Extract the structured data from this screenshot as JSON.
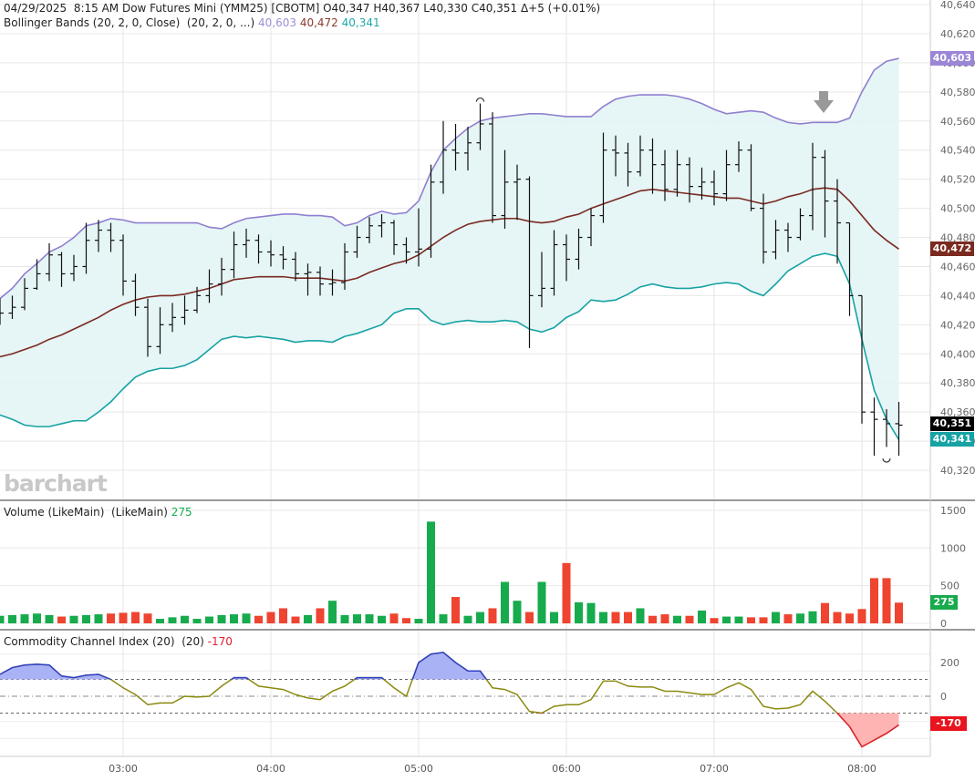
{
  "header": {
    "date": "04/29/2025",
    "time": "8:15 AM",
    "symbol": "Dow Futures Mini (YMM25) [CBOTM]",
    "open": "O40,347",
    "high": "H40,367",
    "low": "L40,330",
    "close": "C40,351",
    "change": "Δ+5 (+0.01%)"
  },
  "bollinger": {
    "label": "Bollinger Bands (20, 2, 0, Close)  (20, 2, 0, ...)",
    "upper": "40,603",
    "middle": "40,472",
    "lower": "40,341"
  },
  "volume_label": {
    "label": "Volume (LikeMain)  (LikeMain)",
    "value": "275"
  },
  "cci_label": {
    "label": "Commodity Channel Index (20)  (20)",
    "value": "-170"
  },
  "watermark": "barchart",
  "tags": {
    "upper": "40,603",
    "middle": "40,472",
    "last": "40,351",
    "lower": "40,341",
    "volume": "275",
    "cci": "-170"
  },
  "colors": {
    "upper": "#8f7fd0",
    "middle": "#7a2a22",
    "lower": "#17a2a4",
    "band_fill": "#e3f4f4",
    "up": "#17ab4d",
    "down": "#ee4430",
    "unchanged": "#2a50b8",
    "cci": "#8a8a10",
    "cci_high": "#3040c8",
    "cci_low": "#e02030"
  },
  "chart_data": [
    {
      "type": "ohlc",
      "title": "Dow Futures Mini (YMM25)",
      "ylim": [
        40310,
        40640
      ],
      "y_ticks": [
        "40,640",
        "40,620",
        "40,600",
        "40,580",
        "40,560",
        "40,540",
        "40,520",
        "40,500",
        "40,480",
        "40,460",
        "40,440",
        "40,420",
        "40,400",
        "40,380",
        "40,360",
        "40,340",
        "40,320"
      ],
      "x_ticks": [
        "03:00",
        "04:00",
        "05:00",
        "06:00",
        "07:00",
        "08:00"
      ],
      "x_start": "02:10",
      "interval_min": 5,
      "close": [
        40428,
        40432,
        40445,
        40455,
        40468,
        40455,
        40460,
        40478,
        40485,
        40478,
        40450,
        40432,
        40405,
        40420,
        40425,
        40430,
        40440,
        40448,
        40458,
        40475,
        40478,
        40470,
        40468,
        40465,
        40455,
        40456,
        40448,
        40449,
        40470,
        40480,
        40488,
        40490,
        40475,
        40470,
        40472,
        40518,
        40540,
        40538,
        40545,
        40558,
        40495,
        40518,
        40520,
        40440,
        40445,
        40475,
        40465,
        40480,
        40495,
        40540,
        40538,
        40525,
        40540,
        40530,
        40513,
        40530,
        40515,
        40518,
        40510,
        40530,
        40540,
        40500,
        40470,
        40485,
        40480,
        40495,
        40535,
        40505,
        40490,
        40440,
        40360,
        40355,
        40352,
        40351
      ],
      "high": [
        40438,
        40440,
        40452,
        40465,
        40476,
        40470,
        40468,
        40490,
        40492,
        40490,
        40482,
        40455,
        40438,
        40432,
        40435,
        40440,
        40446,
        40458,
        40466,
        40484,
        40486,
        40482,
        40478,
        40474,
        40470,
        40462,
        40460,
        40458,
        40476,
        40488,
        40494,
        40496,
        40492,
        40480,
        40500,
        40530,
        40560,
        40558,
        40556,
        40572,
        40566,
        40540,
        40530,
        40522,
        40470,
        40485,
        40482,
        40486,
        40500,
        40552,
        40550,
        40545,
        40550,
        40548,
        40540,
        40540,
        40535,
        40528,
        40526,
        40540,
        40546,
        40544,
        40510,
        40492,
        40490,
        40500,
        40545,
        40540,
        40520,
        40490,
        40440,
        40370,
        40362,
        40367
      ],
      "low": [
        40420,
        40424,
        40430,
        40444,
        40450,
        40446,
        40450,
        40455,
        40470,
        40470,
        40440,
        40426,
        40398,
        40400,
        40415,
        40420,
        40428,
        40435,
        40440,
        40452,
        40466,
        40462,
        40460,
        40458,
        40450,
        40440,
        40440,
        40440,
        40444,
        40466,
        40476,
        40480,
        40468,
        40462,
        40460,
        40466,
        40510,
        40526,
        40526,
        40540,
        40490,
        40486,
        40492,
        40404,
        40432,
        40440,
        40450,
        40458,
        40474,
        40490,
        40522,
        40515,
        40522,
        40510,
        40505,
        40508,
        40504,
        40506,
        40502,
        40505,
        40525,
        40498,
        40462,
        40465,
        40470,
        40478,
        40485,
        40480,
        40462,
        40426,
        40352,
        40330,
        40336,
        40330
      ]
    },
    {
      "type": "line",
      "name": "Bollinger Bands (20, 2, 0, Close)",
      "upper": [
        40438,
        40445,
        40455,
        40462,
        40470,
        40474,
        40480,
        40488,
        40490,
        40493,
        40492,
        40490,
        40490,
        40490,
        40490,
        40490,
        40490,
        40487,
        40486,
        40490,
        40493,
        40494,
        40495,
        40496,
        40496,
        40495,
        40495,
        40494,
        40488,
        40490,
        40495,
        40498,
        40496,
        40497,
        40505,
        40525,
        40540,
        40548,
        40555,
        40560,
        40562,
        40563,
        40564,
        40565,
        40565,
        40564,
        40563,
        40563,
        40563,
        40570,
        40575,
        40577,
        40578,
        40578,
        40578,
        40577,
        40575,
        40572,
        40568,
        40565,
        40566,
        40567,
        40566,
        40562,
        40559,
        40558,
        40559,
        40559,
        40559,
        40562,
        40580,
        40595,
        40601,
        40603
      ],
      "middle": [
        40398,
        40400,
        40403,
        40406,
        40410,
        40413,
        40417,
        40421,
        40425,
        40430,
        40434,
        40437,
        40439,
        40440,
        40440,
        40441,
        40443,
        40445,
        40448,
        40451,
        40452,
        40453,
        40453,
        40453,
        40452,
        40452,
        40452,
        40451,
        40450,
        40452,
        40456,
        40459,
        40462,
        40464,
        40468,
        40474,
        40480,
        40485,
        40489,
        40491,
        40492,
        40493,
        40493,
        40491,
        40490,
        40491,
        40494,
        40496,
        40500,
        40503,
        40506,
        40509,
        40512,
        40513,
        40512,
        40511,
        40510,
        40509,
        40508,
        40507,
        40507,
        40505,
        40503,
        40505,
        40508,
        40510,
        40513,
        40514,
        40513,
        40505,
        40495,
        40485,
        40478,
        40472
      ],
      "lower": [
        40358,
        40355,
        40351,
        40350,
        40350,
        40352,
        40354,
        40354,
        40360,
        40367,
        40376,
        40384,
        40388,
        40390,
        40390,
        40392,
        40396,
        40403,
        40410,
        40412,
        40411,
        40412,
        40411,
        40410,
        40408,
        40409,
        40409,
        40408,
        40412,
        40414,
        40417,
        40420,
        40428,
        40431,
        40431,
        40423,
        40420,
        40422,
        40423,
        40422,
        40422,
        40423,
        40422,
        40417,
        40415,
        40418,
        40425,
        40429,
        40437,
        40436,
        40437,
        40441,
        40446,
        40448,
        40446,
        40445,
        40445,
        40446,
        40448,
        40449,
        40448,
        40443,
        40440,
        40448,
        40457,
        40462,
        40467,
        40469,
        40467,
        40448,
        40410,
        40375,
        40355,
        40341
      ]
    },
    {
      "type": "bar",
      "name": "Volume (LikeMain)",
      "ylim": [
        0,
        1500
      ],
      "y_ticks": [
        "1500",
        "1000",
        "500",
        "0"
      ],
      "values": [
        100,
        110,
        120,
        130,
        110,
        90,
        100,
        110,
        120,
        130,
        140,
        150,
        130,
        60,
        80,
        100,
        60,
        90,
        110,
        120,
        130,
        100,
        150,
        200,
        90,
        110,
        200,
        300,
        110,
        120,
        120,
        100,
        130,
        70,
        60,
        1350,
        120,
        350,
        100,
        150,
        200,
        550,
        300,
        150,
        550,
        150,
        800,
        280,
        270,
        150,
        150,
        150,
        200,
        100,
        120,
        100,
        100,
        170,
        70,
        90,
        90,
        80,
        80,
        150,
        120,
        130,
        160,
        270,
        150,
        130,
        190,
        600,
        600,
        275
      ]
    },
    {
      "type": "line",
      "name": "Commodity Channel Index (20)",
      "ylim": [
        -350,
        250
      ],
      "y_ticks": [
        "200",
        "0"
      ],
      "levels": [
        100,
        0,
        -100
      ],
      "values": [
        130,
        170,
        185,
        190,
        185,
        120,
        110,
        125,
        130,
        100,
        50,
        10,
        -50,
        -40,
        -40,
        0,
        -5,
        0,
        60,
        110,
        110,
        60,
        50,
        40,
        10,
        -10,
        -20,
        30,
        60,
        110,
        110,
        110,
        50,
        0,
        200,
        250,
        260,
        200,
        150,
        150,
        50,
        40,
        10,
        -90,
        -100,
        -60,
        -50,
        -50,
        -20,
        90,
        90,
        60,
        55,
        55,
        30,
        30,
        20,
        10,
        10,
        50,
        80,
        40,
        -60,
        -75,
        -70,
        -50,
        30,
        -30,
        -100,
        -180,
        -300,
        -260,
        -220,
        -170
      ]
    }
  ]
}
